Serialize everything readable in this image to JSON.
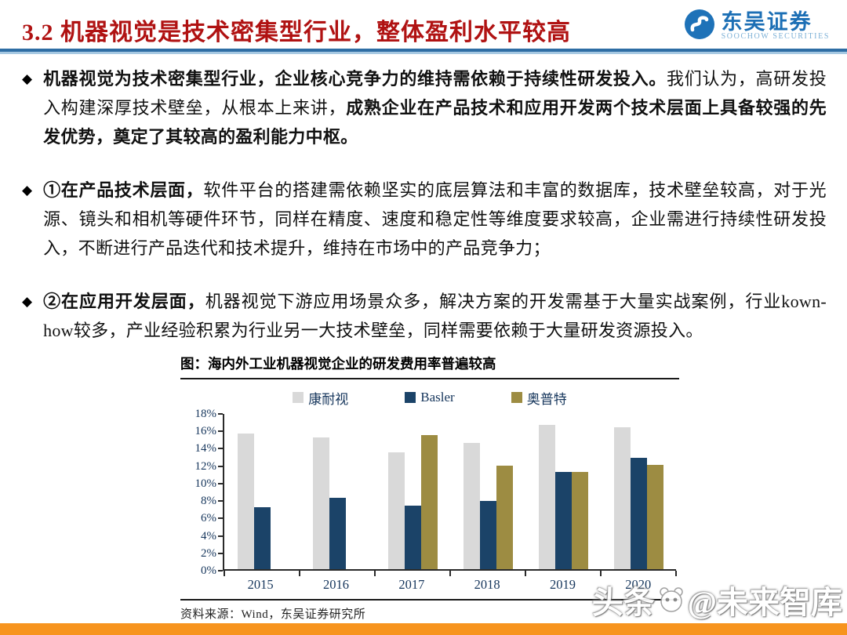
{
  "header": {
    "title": "3.2 机器视觉是技术密集型行业，整体盈利水平较高",
    "logo": {
      "name": "东吴证券",
      "subtitle": "SOOCHOW SECURITIES"
    }
  },
  "bullets": [
    {
      "segments": [
        {
          "text": "机器视觉为技术密集型行业，企业核心竞争力的维持需依赖于持续性研发投入。",
          "bold": true
        },
        {
          "text": "我们认为，高研发投入构建深厚技术壁垒，从根本上来讲，",
          "bold": false
        },
        {
          "text": "成熟企业在产品技术和应用开发两个技术层面上具备较强的先发优势，奠定了其较高的盈利能力中枢。",
          "bold": true
        }
      ]
    },
    {
      "segments": [
        {
          "text": "①在产品技术层面，",
          "bold": true
        },
        {
          "text": "软件平台的搭建需依赖坚实的底层算法和丰富的数据库，技术壁垒较高，对于光源、镜头和相机等硬件环节，同样在精度、速度和稳定性等维度要求较高，企业需进行持续性研发投入，不断进行产品迭代和技术提升，维持在市场中的产品竞争力；",
          "bold": false
        }
      ]
    },
    {
      "segments": [
        {
          "text": "②在应用开发层面，",
          "bold": true
        },
        {
          "text": "机器视觉下游应用场景众多，解决方案的开发需基于大量实战案例，行业kown-how较多，产业经验积累为行业另一大技术壁垒，同样需要依赖于大量研发资源投入。",
          "bold": false
        }
      ]
    }
  ],
  "figure": {
    "source": "资料来源：Wind，东吴证券研究所"
  },
  "chart_data": {
    "type": "bar",
    "title": "图：海内外工业机器视觉企业的研发费用率普遍较高",
    "categories": [
      "2015",
      "2016",
      "2017",
      "2018",
      "2019",
      "2020"
    ],
    "series": [
      {
        "name": "康耐视",
        "color": "#d9d9d9",
        "values": [
          15.6,
          15.1,
          13.4,
          14.5,
          16.6,
          16.3
        ]
      },
      {
        "name": "Basler",
        "color": "#1b4368",
        "values": [
          7.1,
          8.2,
          7.3,
          7.8,
          11.2,
          12.8
        ]
      },
      {
        "name": "奥普特",
        "color": "#9d8c42",
        "values": [
          null,
          null,
          15.4,
          11.9,
          11.2,
          12.0
        ]
      }
    ],
    "xlabel": "",
    "ylabel": "",
    "ylim": [
      0,
      18
    ],
    "ytick_step": 2,
    "ytick_suffix": "%",
    "grid": false,
    "legend_position": "top"
  },
  "watermark": {
    "prefix": "头条",
    "suffix": "@未来智库"
  },
  "colors": {
    "title_red": "#b01212",
    "divider_blue": "#2e6da4",
    "footer_orange": "#f7941e",
    "logo_blue": "#1c6fb5"
  }
}
